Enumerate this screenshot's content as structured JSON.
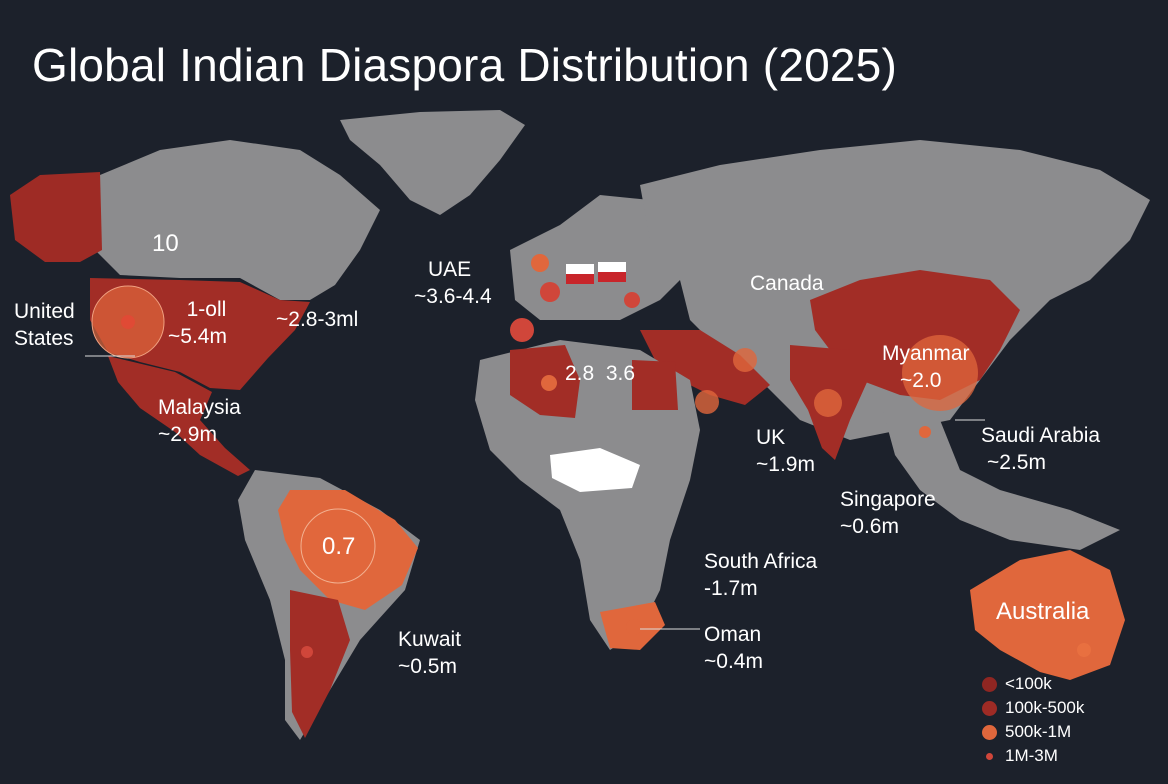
{
  "title": "Global Indian Diaspora Distribution (2025)",
  "colors": {
    "ocean": "#1c212b",
    "land": "#8c8c8e",
    "tier_dark_red": "#9c2a24",
    "tier_red": "#b8362d",
    "tier_orange": "#e0673c",
    "highlight_white": "#ffffff"
  },
  "labels": [
    {
      "id": "us",
      "lines": [
        "United",
        "States"
      ]
    },
    {
      "id": "us_value",
      "lines": [
        "1-oll",
        "~5.4m"
      ]
    },
    {
      "id": "north_america_number",
      "lines": [
        "10"
      ]
    },
    {
      "id": "east_us",
      "lines": [
        "~2.8-3ml"
      ]
    },
    {
      "id": "uae",
      "lines": [
        "UAE",
        "~3.6-4.4"
      ]
    },
    {
      "id": "europe_numbers",
      "lines": [
        "2.8  3.6"
      ]
    },
    {
      "id": "canada",
      "lines": [
        "Canada"
      ]
    },
    {
      "id": "myanmar",
      "lines": [
        "Myanmar",
        "~2.0"
      ]
    },
    {
      "id": "malaysia",
      "lines": [
        "Malaysia",
        "~2.9m"
      ]
    },
    {
      "id": "uk",
      "lines": [
        "UK",
        "~1.9m"
      ]
    },
    {
      "id": "saudi_arabia",
      "lines": [
        "Saudi Arabia",
        "~2.5m"
      ]
    },
    {
      "id": "singapore",
      "lines": [
        "Singapore",
        "~0.6m"
      ]
    },
    {
      "id": "brazil_value",
      "lines": [
        "0.7"
      ]
    },
    {
      "id": "south_africa",
      "lines": [
        "South Africa",
        "-1.7m"
      ]
    },
    {
      "id": "kuwait",
      "lines": [
        "Kuwait",
        "~0.5m"
      ]
    },
    {
      "id": "oman",
      "lines": [
        "Oman",
        "~0.4m"
      ]
    },
    {
      "id": "australia",
      "lines": [
        "Australia"
      ]
    }
  ],
  "legend": [
    {
      "label": "<100k",
      "color": "#8f2622"
    },
    {
      "label": "100k-500k",
      "color": "#9e2b25"
    },
    {
      "label": "500k-1M",
      "color": "#e0673c"
    },
    {
      "label": "1M-3M",
      "color": "#d0463a"
    }
  ]
}
